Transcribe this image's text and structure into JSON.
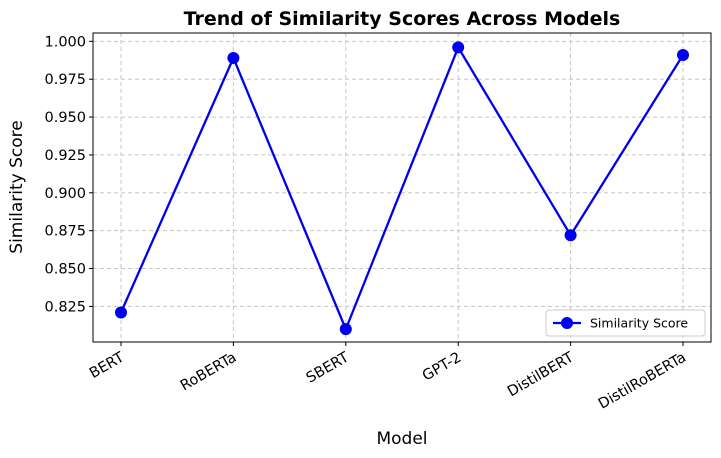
{
  "chart_data": {
    "type": "line",
    "title": "Trend of Similarity Scores Across Models",
    "xlabel": "Model",
    "ylabel": "Similarity Score",
    "categories": [
      "BERT",
      "RoBERTa",
      "SBERT",
      "GPT-2",
      "DistilBERT",
      "DistilRoBERTa"
    ],
    "series": [
      {
        "name": "Similarity Score",
        "values": [
          0.821,
          0.989,
          0.81,
          0.996,
          0.872,
          0.991
        ],
        "color": "#0000ee",
        "marker": "circle"
      }
    ],
    "ylim": [
      0.8015,
      1.0055
    ],
    "yticks": [
      0.825,
      0.85,
      0.875,
      0.9,
      0.925,
      0.95,
      0.975,
      1.0
    ],
    "ytick_labels": [
      "0.825",
      "0.850",
      "0.875",
      "0.900",
      "0.925",
      "0.950",
      "0.975",
      "1.000"
    ],
    "grid": true,
    "grid_style": "dashed",
    "legend_position": "lower-right"
  }
}
